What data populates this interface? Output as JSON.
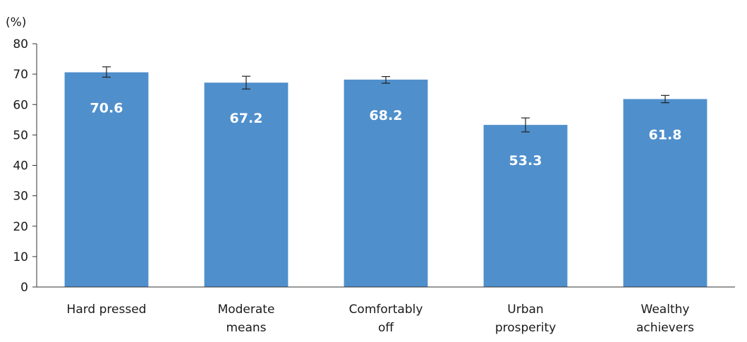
{
  "chart_data": {
    "type": "bar",
    "title": "",
    "xlabel": "",
    "ylabel": "(%)",
    "ylim": [
      0,
      80
    ],
    "yticks": [
      0,
      10,
      20,
      30,
      40,
      50,
      60,
      70,
      80
    ],
    "grid": false,
    "categories": [
      [
        "Hard pressed"
      ],
      [
        "Moderate",
        "means"
      ],
      [
        "Comfortably",
        "off"
      ],
      [
        "Urban",
        "prosperity"
      ],
      [
        "Wealthy",
        "achievers"
      ]
    ],
    "values": [
      70.6,
      67.2,
      68.2,
      53.3,
      61.8
    ],
    "value_labels": [
      "70.6",
      "67.2",
      "68.2",
      "53.3",
      "61.8"
    ],
    "error_bars": [
      {
        "low": 69.0,
        "high": 72.4
      },
      {
        "low": 65.1,
        "high": 69.3
      },
      {
        "low": 67.0,
        "high": 69.2
      },
      {
        "low": 51.0,
        "high": 55.6
      },
      {
        "low": 60.6,
        "high": 63.0
      }
    ],
    "bar_color": "#4f8fcc",
    "label_color": "#ffffff"
  }
}
